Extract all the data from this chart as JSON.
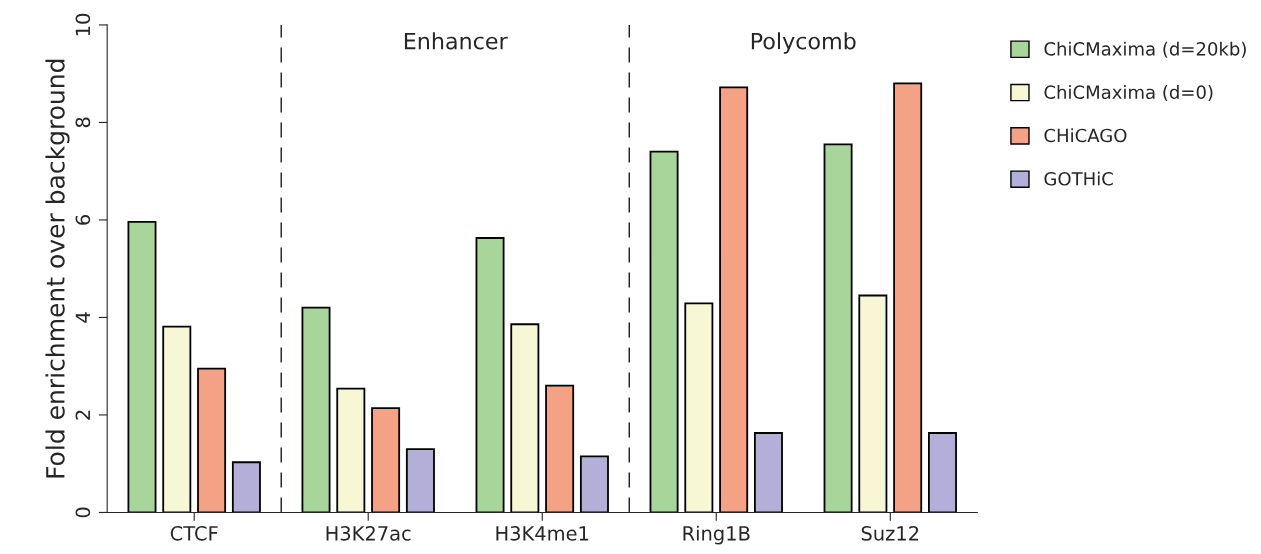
{
  "chart_data": {
    "type": "bar",
    "ylabel": "Fold enrichment over background",
    "categories": [
      "CTCF",
      "H3K27ac",
      "H3K4me1",
      "Ring1B",
      "Suz12"
    ],
    "series": [
      {
        "name": "ChiCMaxima (d=20kb)",
        "color": "#a8d69a",
        "values": [
          5.96,
          4.2,
          5.63,
          7.4,
          7.55
        ]
      },
      {
        "name": "ChiCMaxima (d=0)",
        "color": "#f7f7d6",
        "values": [
          3.81,
          2.54,
          3.86,
          4.29,
          4.45
        ]
      },
      {
        "name": "CHiCAGO",
        "color": "#f4a285",
        "values": [
          2.95,
          2.14,
          2.6,
          8.72,
          8.8
        ]
      },
      {
        "name": "GOTHiC",
        "color": "#b3afd8",
        "values": [
          1.03,
          1.3,
          1.15,
          1.63,
          1.63
        ]
      }
    ],
    "ylim": [
      0,
      10
    ],
    "yticks": [
      0,
      2,
      4,
      6,
      8,
      10
    ],
    "annotations": [
      "Enhancer",
      "Polycomb"
    ],
    "grid": false,
    "legend": "right"
  }
}
